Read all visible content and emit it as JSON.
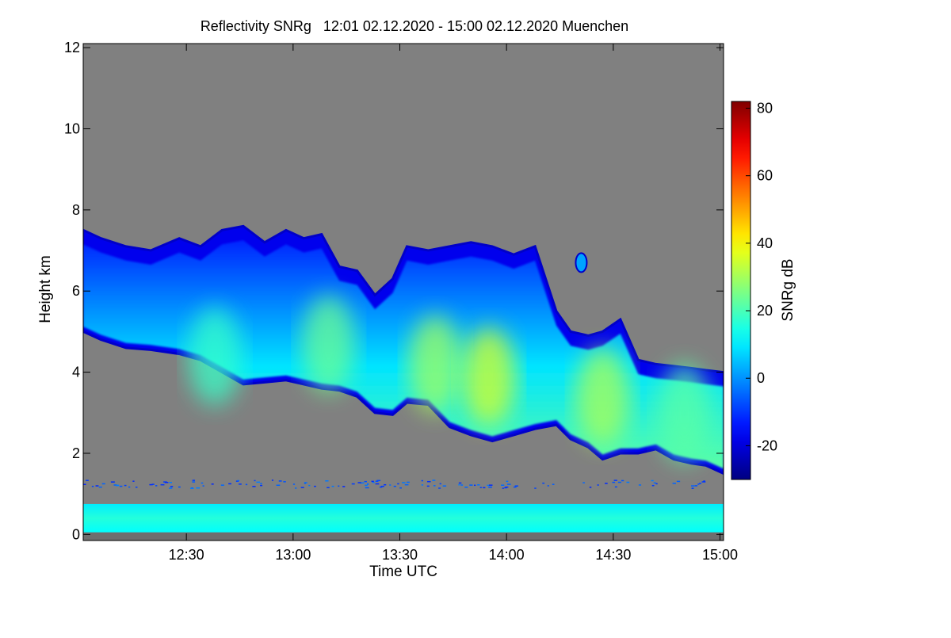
{
  "chart_data": {
    "type": "heatmap",
    "title": "Reflectivity SNRg   12:01 02.12.2020 - 15:00 02.12.2020 Muenchen",
    "xlabel": "Time UTC",
    "ylabel": "Height km",
    "xlim_minutes": [
      721,
      901
    ],
    "xticks": [
      {
        "minutes": 750,
        "label": "12:30"
      },
      {
        "minutes": 780,
        "label": "13:00"
      },
      {
        "minutes": 810,
        "label": "13:30"
      },
      {
        "minutes": 840,
        "label": "14:00"
      },
      {
        "minutes": 870,
        "label": "14:30"
      },
      {
        "minutes": 900,
        "label": "15:00"
      }
    ],
    "ylim": [
      -0.15,
      12.1
    ],
    "yticks": [
      0,
      2,
      4,
      6,
      8,
      10,
      12
    ],
    "background_color": "#808080",
    "colorbar": {
      "label": "SNRg dB",
      "range": [
        -30,
        82
      ],
      "ticks": [
        -20,
        0,
        20,
        40,
        60,
        80
      ],
      "colormap": "jet"
    },
    "cloud_layer": {
      "description": "Precipitating cloud layer descending in time",
      "time_min": [
        721,
        726,
        733,
        740,
        748,
        754,
        760,
        766,
        772,
        778,
        783,
        788,
        793,
        798,
        803,
        808,
        812,
        818,
        824,
        830,
        836,
        842,
        848,
        854,
        858,
        863,
        867,
        872,
        877,
        882,
        887,
        892,
        896,
        901
      ],
      "top_km": [
        7.5,
        7.3,
        7.1,
        7.0,
        7.3,
        7.1,
        7.5,
        7.6,
        7.2,
        7.5,
        7.3,
        7.4,
        6.6,
        6.5,
        5.9,
        6.3,
        7.1,
        7.0,
        7.1,
        7.2,
        7.1,
        6.9,
        7.1,
        5.5,
        5.0,
        4.9,
        5.0,
        5.3,
        4.3,
        4.2,
        4.15,
        4.1,
        4.05,
        4.0
      ],
      "base_km": [
        5.0,
        4.8,
        4.6,
        4.55,
        4.45,
        4.3,
        4.0,
        3.7,
        3.75,
        3.8,
        3.7,
        3.6,
        3.55,
        3.4,
        3.0,
        2.95,
        3.25,
        3.2,
        2.65,
        2.45,
        2.3,
        2.45,
        2.6,
        2.7,
        2.35,
        2.15,
        1.85,
        2.0,
        2.0,
        2.1,
        1.85,
        1.75,
        1.7,
        1.5
      ],
      "snr_bottom_dB": 22,
      "snr_top_dB": -12,
      "cores": [
        {
          "time_min": 835,
          "height_km": 3.9,
          "snr_dB": 36
        },
        {
          "time_min": 820,
          "height_km": 4.2,
          "snr_dB": 30
        },
        {
          "time_min": 867,
          "height_km": 3.4,
          "snr_dB": 31
        },
        {
          "time_min": 790,
          "height_km": 4.7,
          "snr_dB": 24
        },
        {
          "time_min": 758,
          "height_km": 4.4,
          "snr_dB": 18
        },
        {
          "time_min": 890,
          "height_km": 3.0,
          "snr_dB": 22
        }
      ]
    },
    "isolated_echo": {
      "time_min": 861,
      "height_km": 6.7,
      "snr_dB": 2
    },
    "boundary_layer_clutter": {
      "bottom_km": 0.05,
      "top_km": 0.75,
      "snr_dB": 14
    },
    "scattered_echo_band_km": [
      1.15,
      1.35
    ]
  }
}
